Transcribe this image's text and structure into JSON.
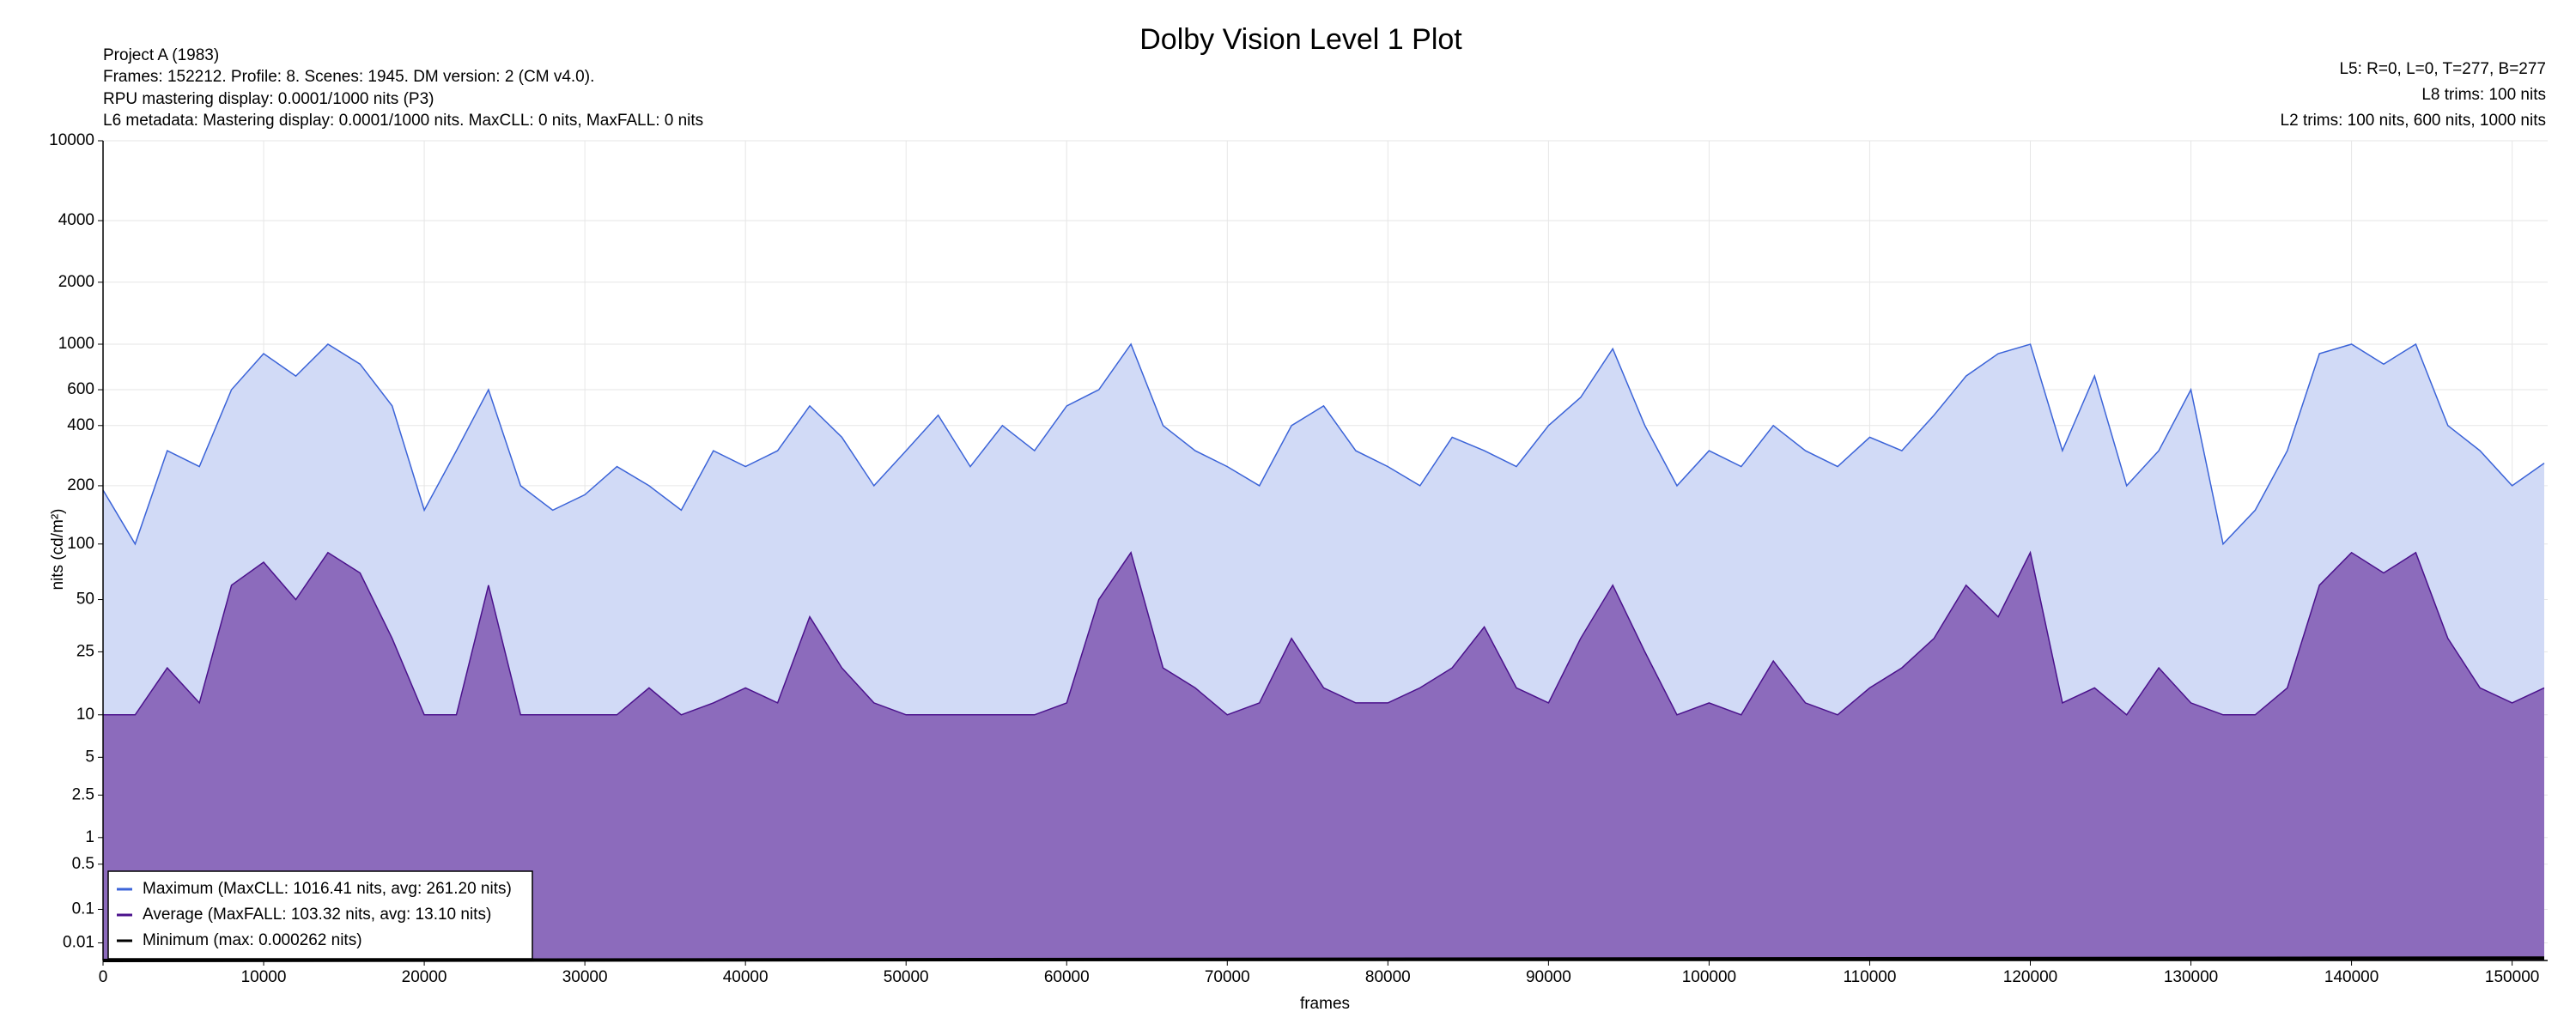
{
  "chart_data": {
    "type": "line",
    "title": "Dolby Vision Level 1 Plot",
    "info_left": [
      "Project A (1983)",
      "Frames: 152212. Profile: 8. Scenes: 1945. DM version: 2 (CM v4.0).",
      "RPU mastering display: 0.0001/1000 nits  (P3)",
      "L6 metadata: Mastering display: 0.0001/1000 nits. MaxCLL: 0 nits, MaxFALL: 0 nits"
    ],
    "info_right": [
      "L5: R=0, L=0, T=277, B=277",
      "L8 trims: 100 nits",
      "L2 trims: 100 nits, 600 nits, 1000 nits"
    ],
    "x_label": "frames",
    "y_label": "nits (cd/m²)",
    "yscale": "pq",
    "grid": true,
    "legend": "lower left",
    "xlim": [
      0,
      152212
    ],
    "xticks": [
      0,
      10000,
      20000,
      30000,
      40000,
      50000,
      60000,
      70000,
      80000,
      90000,
      100000,
      110000,
      120000,
      130000,
      140000,
      150000
    ],
    "ylim": [
      0,
      10000
    ],
    "yticks": [
      0.01,
      0.1,
      0.5,
      1,
      2.5,
      5,
      10,
      25,
      50,
      100,
      200,
      400,
      600,
      1000,
      2000,
      4000,
      10000
    ],
    "x": [
      0,
      2000,
      4000,
      6000,
      8000,
      10000,
      12000,
      14000,
      16000,
      18000,
      20000,
      22000,
      24000,
      26000,
      28000,
      30000,
      32000,
      34000,
      36000,
      38000,
      40000,
      42000,
      44000,
      46000,
      48000,
      50000,
      52000,
      54000,
      56000,
      58000,
      60000,
      62000,
      64000,
      66000,
      68000,
      70000,
      72000,
      74000,
      76000,
      78000,
      80000,
      82000,
      84000,
      86000,
      88000,
      90000,
      92000,
      94000,
      96000,
      98000,
      100000,
      102000,
      104000,
      106000,
      108000,
      110000,
      112000,
      114000,
      116000,
      118000,
      120000,
      122000,
      124000,
      126000,
      128000,
      130000,
      132000,
      134000,
      136000,
      138000,
      140000,
      142000,
      144000,
      146000,
      148000,
      150000,
      152000
    ],
    "series": [
      {
        "name": "Maximum (MaxCLL: 1016.41 nits, avg: 261.20 nits)",
        "color": "#3c64d8",
        "fill": "#d1daf6",
        "values": [
          190,
          100,
          300,
          250,
          600,
          900,
          700,
          1000,
          800,
          500,
          150,
          300,
          600,
          200,
          150,
          180,
          250,
          200,
          150,
          300,
          250,
          300,
          500,
          350,
          200,
          300,
          450,
          250,
          400,
          300,
          500,
          600,
          1000,
          400,
          300,
          250,
          200,
          400,
          500,
          300,
          250,
          200,
          350,
          300,
          250,
          400,
          550,
          950,
          400,
          200,
          300,
          250,
          400,
          300,
          250,
          350,
          300,
          450,
          700,
          900,
          1000,
          300,
          700,
          200,
          300,
          600,
          100,
          150,
          300,
          900,
          1000,
          800,
          1000,
          400,
          300,
          200,
          260
        ]
      },
      {
        "name": "Average (MaxFALL: 103.32 nits, avg: 13.10 nits)",
        "color": "#4b128c",
        "fill": "#8c6bbc",
        "values": [
          10,
          10,
          20,
          12,
          60,
          80,
          50,
          90,
          70,
          30,
          10,
          10,
          60,
          10,
          10,
          10,
          10,
          15,
          10,
          12,
          15,
          12,
          40,
          20,
          12,
          10,
          10,
          10,
          10,
          10,
          12,
          50,
          90,
          20,
          15,
          10,
          12,
          30,
          15,
          12,
          12,
          15,
          20,
          35,
          15,
          12,
          30,
          60,
          25,
          10,
          12,
          10,
          22,
          12,
          10,
          15,
          20,
          30,
          60,
          40,
          90,
          12,
          15,
          10,
          20,
          12,
          10,
          10,
          15,
          60,
          90,
          70,
          90,
          30,
          15,
          12,
          15
        ]
      },
      {
        "name": "Minimum (max: 0.000262 nits)",
        "color": "#000000",
        "x": [
          0,
          152000
        ],
        "values": [
          0,
          0.000262
        ]
      }
    ]
  }
}
